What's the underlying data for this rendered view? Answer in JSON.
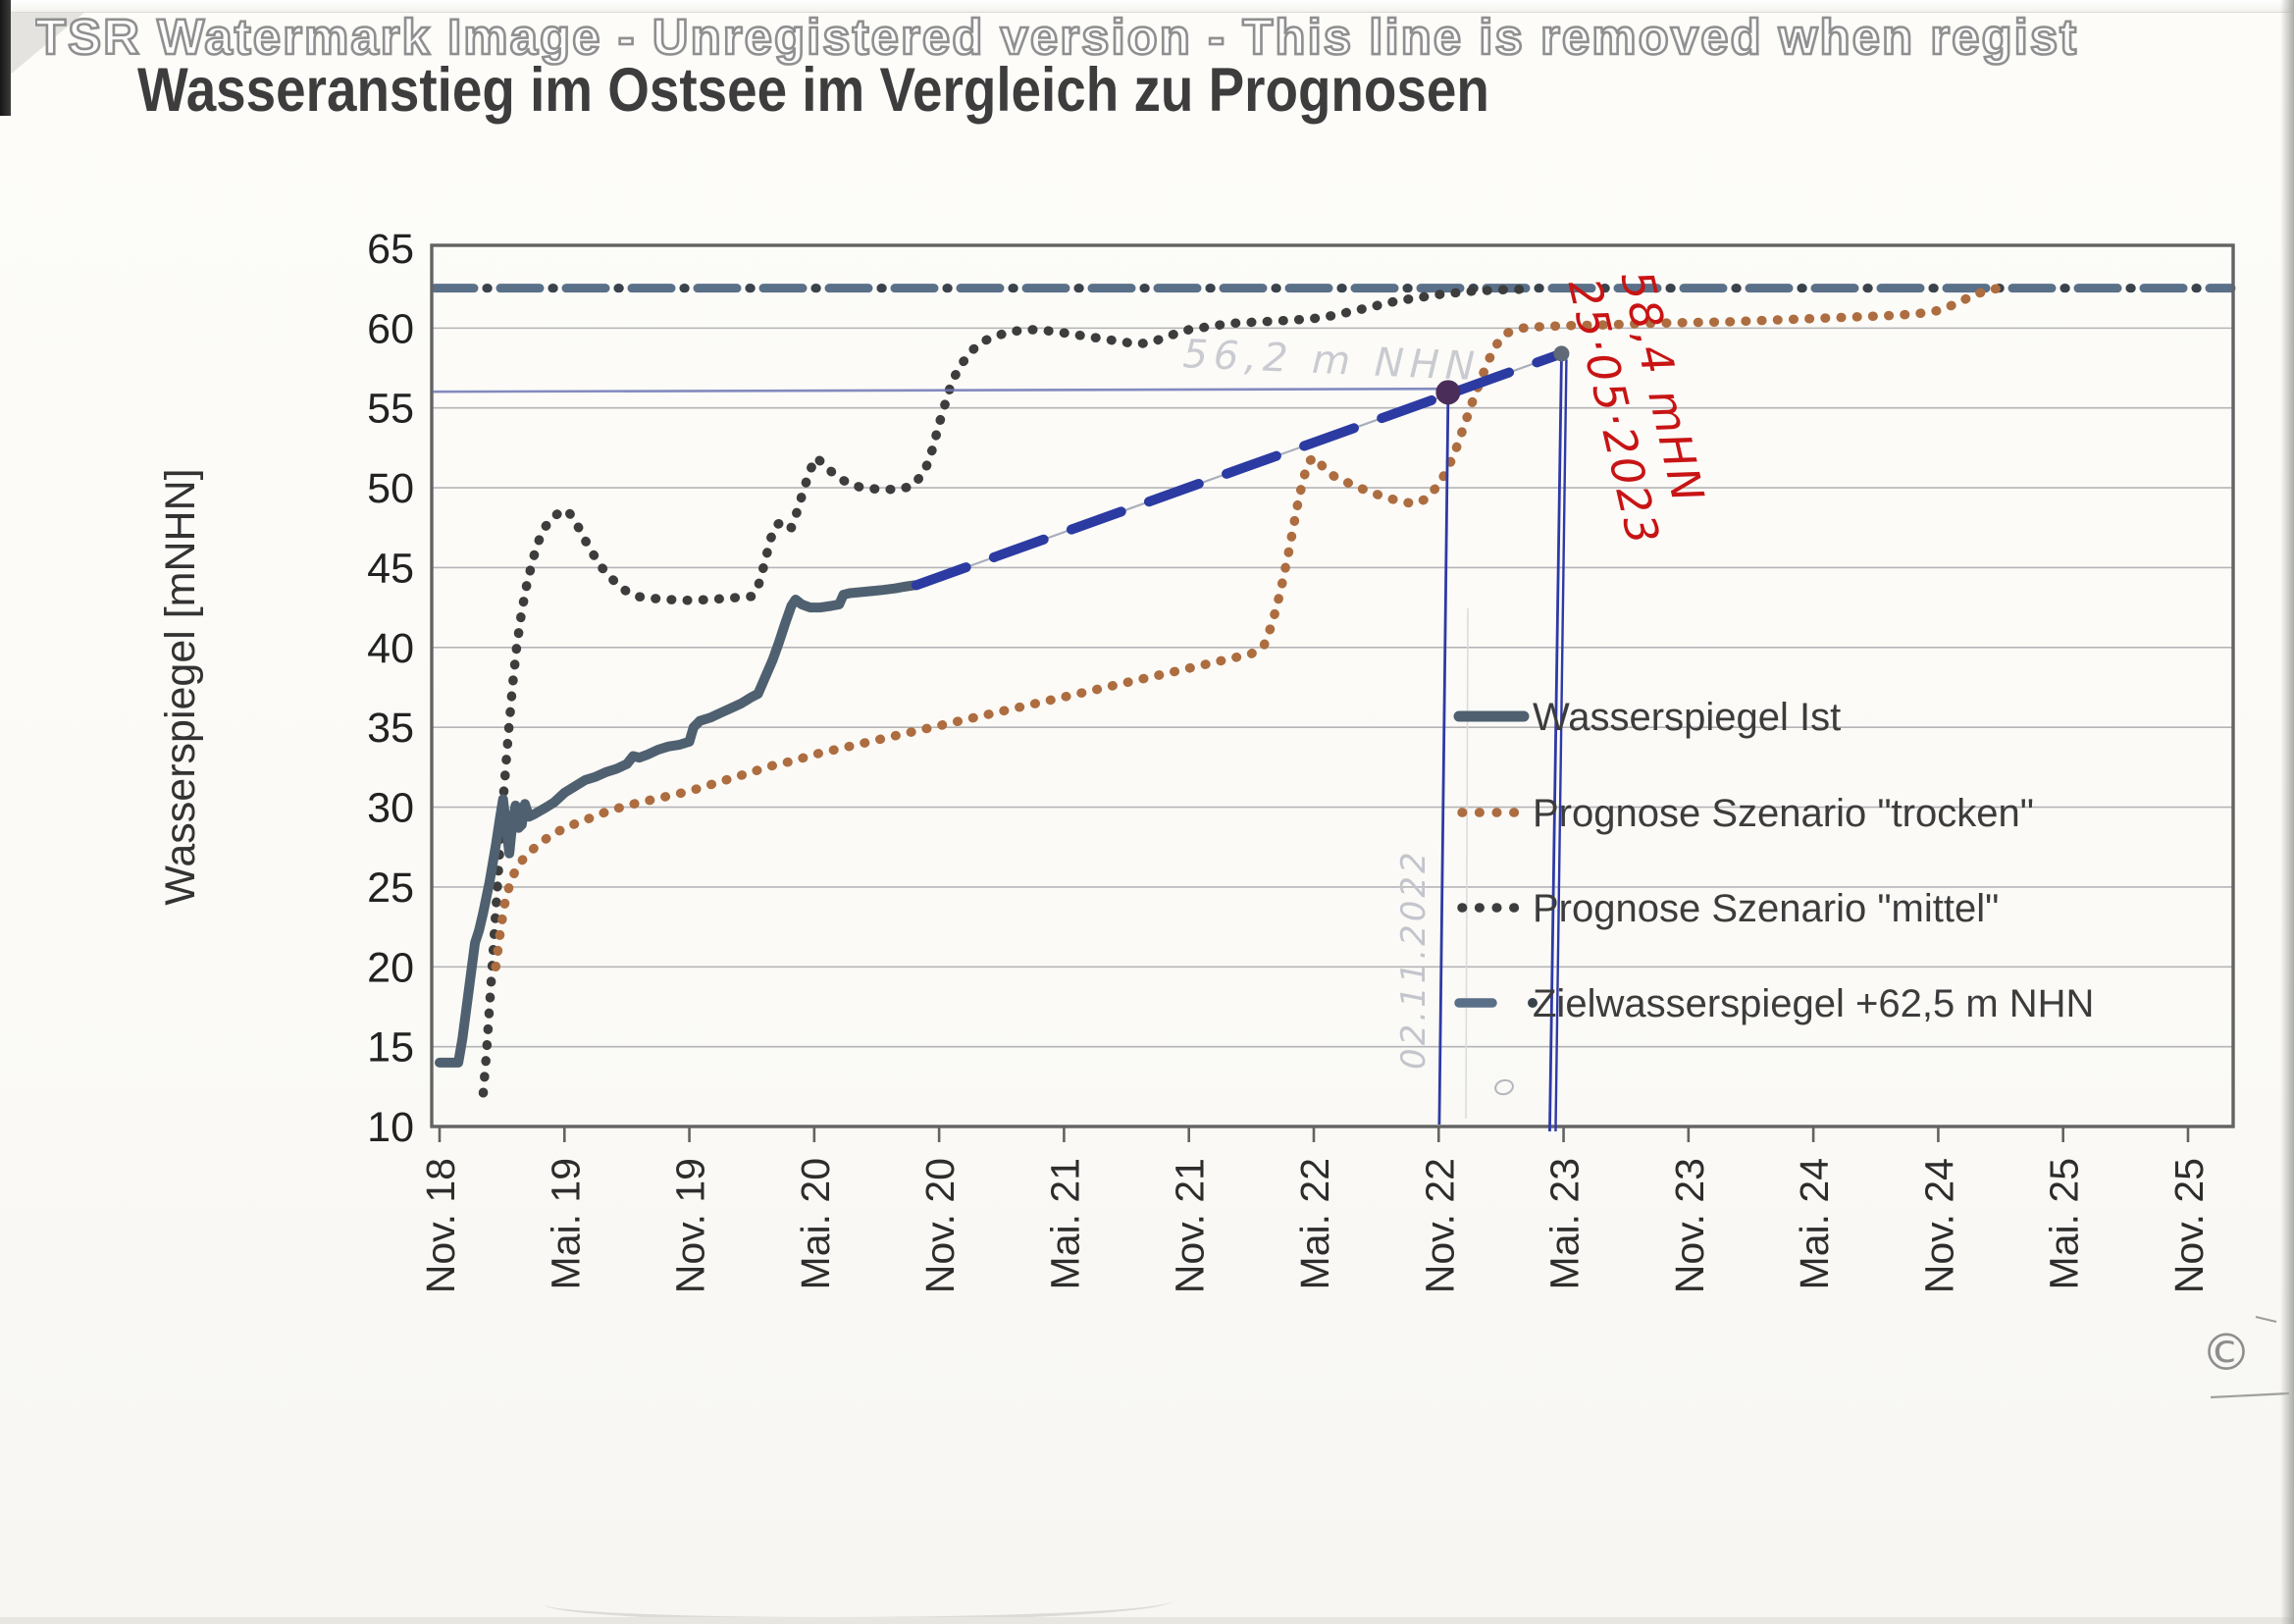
{
  "watermark": {
    "text": "TSR Watermark Image - Unregistered version - This line is removed when regist"
  },
  "title": "Wasseranstieg im Ostsee im Vergleich zu Prognosen",
  "chart_data": {
    "type": "line",
    "title": "Wasseranstieg im Ostsee im Vergleich zu Prognosen",
    "ylabel": "Wasserspiegel [mNHN]",
    "xlabel": "",
    "ylim": [
      10,
      65
    ],
    "y_ticks": [
      10,
      15,
      20,
      25,
      30,
      35,
      40,
      45,
      50,
      55,
      60,
      65
    ],
    "x_tick_labels": [
      "Nov. 18",
      "Mai. 19",
      "Nov. 19",
      "Mai. 20",
      "Nov. 20",
      "Mai. 21",
      "Nov. 21",
      "Mai. 22",
      "Nov. 22",
      "Mai. 23",
      "Nov. 23",
      "Mai. 24",
      "Nov. 24",
      "Mai. 25",
      "Nov. 25"
    ],
    "x_axis_unit": "months since Nov 2018, 6 months per tick",
    "xlim_months": [
      0,
      84
    ],
    "grid": "horizontal",
    "legend_position": "inside-right",
    "series": [
      {
        "name": "Wasserspiegel Ist",
        "style": "solid",
        "color": "#4f6070",
        "points": [
          [
            0,
            14
          ],
          [
            0.9,
            14
          ],
          [
            1.1,
            15.5
          ],
          [
            1.4,
            18.5
          ],
          [
            1.7,
            21.5
          ],
          [
            1.9,
            22.3
          ],
          [
            2.1,
            23.4
          ],
          [
            2.4,
            25.3
          ],
          [
            2.7,
            27.6
          ],
          [
            2.9,
            29.3
          ],
          [
            3.05,
            30.5
          ],
          [
            3.2,
            28.8
          ],
          [
            3.35,
            27.1
          ],
          [
            3.5,
            29.0
          ],
          [
            3.65,
            30.1
          ],
          [
            3.8,
            28.7
          ],
          [
            3.95,
            28.9
          ],
          [
            4.1,
            30.2
          ],
          [
            4.3,
            29.4
          ],
          [
            4.6,
            29.6
          ],
          [
            5.0,
            29.9
          ],
          [
            5.5,
            30.3
          ],
          [
            6.0,
            30.9
          ],
          [
            6.5,
            31.3
          ],
          [
            7,
            31.7
          ],
          [
            7.5,
            31.9
          ],
          [
            8,
            32.2
          ],
          [
            8.5,
            32.4
          ],
          [
            9,
            32.7
          ],
          [
            9.3,
            33.2
          ],
          [
            9.6,
            33.1
          ],
          [
            10,
            33.3
          ],
          [
            10.5,
            33.6
          ],
          [
            11,
            33.8
          ],
          [
            11.5,
            33.9
          ],
          [
            12,
            34.1
          ],
          [
            12.2,
            35.0
          ],
          [
            12.5,
            35.4
          ],
          [
            13,
            35.6
          ],
          [
            13.5,
            35.9
          ],
          [
            14,
            36.2
          ],
          [
            14.5,
            36.5
          ],
          [
            15,
            36.9
          ],
          [
            15.3,
            37.1
          ],
          [
            15.6,
            38.0
          ],
          [
            16,
            39.2
          ],
          [
            16.3,
            40.3
          ],
          [
            16.6,
            41.5
          ],
          [
            16.9,
            42.6
          ],
          [
            17.1,
            43.0
          ],
          [
            17.4,
            42.7
          ],
          [
            17.8,
            42.5
          ],
          [
            18.3,
            42.5
          ],
          [
            18.8,
            42.6
          ],
          [
            19.2,
            42.7
          ],
          [
            19.4,
            43.3
          ],
          [
            19.7,
            43.4
          ],
          [
            20.5,
            43.5
          ],
          [
            21.3,
            43.6
          ],
          [
            21.9,
            43.7
          ],
          [
            22.3,
            43.8
          ],
          [
            22.8,
            43.9
          ]
        ]
      },
      {
        "name": "Prognose Szenario \"trocken\"",
        "style": "dotted",
        "color": "#ad6d40",
        "points": [
          [
            2.7,
            20.0
          ],
          [
            2.9,
            22.0
          ],
          [
            3.1,
            23.8
          ],
          [
            3.4,
            25.3
          ],
          [
            3.7,
            26.2
          ],
          [
            4.1,
            26.9
          ],
          [
            4.6,
            27.5
          ],
          [
            5.2,
            28.1
          ],
          [
            6,
            28.7
          ],
          [
            7,
            29.2
          ],
          [
            8,
            29.7
          ],
          [
            9,
            30.1
          ],
          [
            10,
            30.4
          ],
          [
            11,
            30.7
          ],
          [
            12,
            31.0
          ],
          [
            13,
            31.4
          ],
          [
            14,
            31.8
          ],
          [
            15,
            32.2
          ],
          [
            16,
            32.6
          ],
          [
            17,
            32.9
          ],
          [
            18,
            33.3
          ],
          [
            19,
            33.6
          ],
          [
            20,
            33.9
          ],
          [
            21,
            34.2
          ],
          [
            22,
            34.5
          ],
          [
            23,
            34.8
          ],
          [
            24,
            35.1
          ],
          [
            25,
            35.4
          ],
          [
            26,
            35.7
          ],
          [
            27,
            36.0
          ],
          [
            28,
            36.3
          ],
          [
            29,
            36.6
          ],
          [
            30,
            36.9
          ],
          [
            31,
            37.2
          ],
          [
            32,
            37.5
          ],
          [
            33,
            37.8
          ],
          [
            34,
            38.1
          ],
          [
            35,
            38.4
          ],
          [
            36,
            38.7
          ],
          [
            37,
            39.0
          ],
          [
            38,
            39.3
          ],
          [
            39,
            39.6
          ],
          [
            39.6,
            40.1
          ],
          [
            40.0,
            41.5
          ],
          [
            40.4,
            43.5
          ],
          [
            40.8,
            46.0
          ],
          [
            41.2,
            48.8
          ],
          [
            41.5,
            50.6
          ],
          [
            41.8,
            51.7
          ],
          [
            42.1,
            51.9
          ],
          [
            42.5,
            51.2
          ],
          [
            43,
            50.7
          ],
          [
            44,
            50.1
          ],
          [
            45,
            49.6
          ],
          [
            46,
            49.2
          ],
          [
            46.8,
            49.0
          ],
          [
            47.4,
            49.3
          ],
          [
            48,
            50.2
          ],
          [
            48.4,
            51.1
          ],
          [
            48.8,
            52.3
          ],
          [
            49.2,
            53.8
          ],
          [
            49.6,
            55.3
          ],
          [
            50,
            56.7
          ],
          [
            50.4,
            58.0
          ],
          [
            50.8,
            59.0
          ],
          [
            51.3,
            59.7
          ],
          [
            52,
            60.0
          ],
          [
            53,
            60.1
          ],
          [
            54,
            60.15
          ],
          [
            56,
            60.2
          ],
          [
            58,
            60.3
          ],
          [
            60,
            60.35
          ],
          [
            62,
            60.4
          ],
          [
            64,
            60.5
          ],
          [
            66,
            60.6
          ],
          [
            68,
            60.7
          ],
          [
            70,
            60.8
          ],
          [
            71,
            60.9
          ],
          [
            72,
            61.1
          ],
          [
            72.8,
            61.5
          ],
          [
            73.6,
            62.0
          ],
          [
            74.4,
            62.4
          ],
          [
            75,
            62.5
          ]
        ]
      },
      {
        "name": "Prognose Szenario \"mittel\"",
        "style": "dotted",
        "color": "#3d3d3d",
        "points": [
          [
            2.1,
            12.1
          ],
          [
            2.25,
            14.5
          ],
          [
            2.4,
            17.5
          ],
          [
            2.55,
            20.5
          ],
          [
            2.7,
            23.5
          ],
          [
            2.85,
            26.5
          ],
          [
            3.0,
            29.5
          ],
          [
            3.15,
            32.0
          ],
          [
            3.3,
            34.5
          ],
          [
            3.5,
            37.5
          ],
          [
            3.7,
            40.0
          ],
          [
            3.95,
            42.3
          ],
          [
            4.2,
            44.0
          ],
          [
            4.5,
            45.6
          ],
          [
            4.8,
            46.8
          ],
          [
            5.1,
            47.6
          ],
          [
            5.5,
            48.2
          ],
          [
            5.9,
            48.6
          ],
          [
            6.2,
            48.5
          ],
          [
            6.6,
            47.7
          ],
          [
            7,
            46.7
          ],
          [
            7.4,
            45.8
          ],
          [
            7.8,
            45.0
          ],
          [
            8.2,
            44.4
          ],
          [
            8.6,
            43.9
          ],
          [
            9,
            43.5
          ],
          [
            9.5,
            43.2
          ],
          [
            10,
            43.1
          ],
          [
            11,
            43.0
          ],
          [
            12,
            42.95
          ],
          [
            13,
            43.0
          ],
          [
            14,
            43.1
          ],
          [
            15,
            43.2
          ],
          [
            15.3,
            43.8
          ],
          [
            15.6,
            45.2
          ],
          [
            15.9,
            46.8
          ],
          [
            16.2,
            47.7
          ],
          [
            16.6,
            47.9
          ],
          [
            16.9,
            47.5
          ],
          [
            17.2,
            48.6
          ],
          [
            17.5,
            49.9
          ],
          [
            17.8,
            51.1
          ],
          [
            18.1,
            51.9
          ],
          [
            18.5,
            51.4
          ],
          [
            19,
            50.8
          ],
          [
            19.6,
            50.3
          ],
          [
            20.3,
            50.0
          ],
          [
            21.2,
            49.9
          ],
          [
            22,
            49.9
          ],
          [
            22.7,
            50.1
          ],
          [
            23.3,
            51.0
          ],
          [
            23.7,
            52.5
          ],
          [
            24.0,
            54.0
          ],
          [
            24.3,
            55.3
          ],
          [
            24.6,
            56.6
          ],
          [
            25,
            57.6
          ],
          [
            25.5,
            58.5
          ],
          [
            26,
            59.1
          ],
          [
            26.7,
            59.5
          ],
          [
            27.5,
            59.8
          ],
          [
            28.5,
            59.9
          ],
          [
            29.5,
            59.8
          ],
          [
            30.5,
            59.6
          ],
          [
            31.5,
            59.4
          ],
          [
            32.5,
            59.2
          ],
          [
            33.5,
            59.0
          ],
          [
            34.2,
            59.1
          ],
          [
            35,
            59.5
          ],
          [
            36,
            59.9
          ],
          [
            37,
            60.1
          ],
          [
            38,
            60.3
          ],
          [
            39.5,
            60.4
          ],
          [
            41,
            60.5
          ],
          [
            42,
            60.6
          ],
          [
            43,
            60.8
          ],
          [
            44,
            61.1
          ],
          [
            45,
            61.4
          ],
          [
            46,
            61.7
          ],
          [
            47,
            61.9
          ],
          [
            48,
            62.1
          ],
          [
            49.5,
            62.3
          ],
          [
            51,
            62.4
          ],
          [
            52.5,
            62.45
          ]
        ]
      },
      {
        "name": "Zielwasserspiegel +62,5 m NHN",
        "style": "dash-dot",
        "color": "#5a7089",
        "dot_color": "#3a434c",
        "points": [
          [
            0,
            62.5
          ],
          [
            84,
            62.5
          ]
        ]
      }
    ],
    "hand_annotations": {
      "extrapolation_line": {
        "color": "#2c3ba2",
        "style": "hand-drawn dashed pen line",
        "points_months": [
          [
            22.9,
            43.9
          ],
          [
            53.9,
            58.4
          ]
        ]
      },
      "horizontal_pen_line": {
        "value_mNHN": 56.2,
        "from_month": 0,
        "to_month": 48.5,
        "color": "#6d77b5"
      },
      "vertical_pen_line_nov22": {
        "month": 48.5,
        "top_value": 56.1,
        "bottom_value": 10,
        "color": "#2e3aa6"
      },
      "vertical_pen_line_mai23": {
        "month": 54,
        "top_value": 58.4,
        "bottom_value": 10,
        "double": true,
        "color": "#2e3aa6"
      },
      "marker_dot": {
        "month": 48.5,
        "value": 56.1,
        "color": "#4b2d59"
      },
      "red_note": {
        "lines": [
          "58,4 mHN",
          "25·05·2023"
        ],
        "color": "#c81414"
      },
      "pencil_level_note": "56,2 m NHN",
      "pencil_date_note": "02.11.2022",
      "copyright_mark": "©"
    }
  }
}
